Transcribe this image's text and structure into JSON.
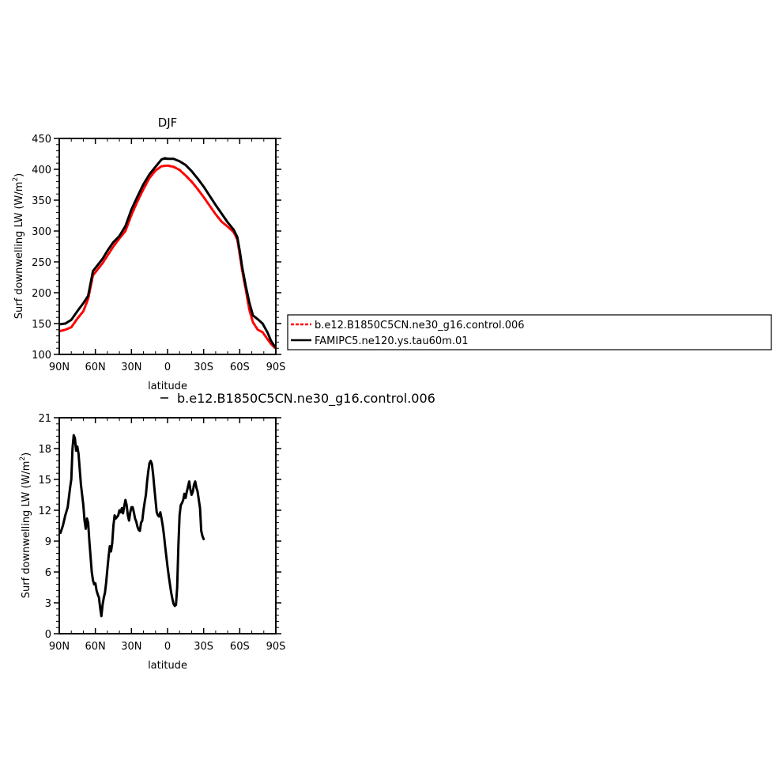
{
  "chart_data": [
    {
      "type": "line",
      "title": "DJF",
      "xlabel": "latitude",
      "ylabel": "Surf downwelling LW (W/m²)",
      "ylabel_parts": {
        "text": "Surf downwelling LW (W/m",
        "sup": "2",
        "close": ")"
      },
      "xlim": [
        90,
        -90
      ],
      "ylim": [
        100,
        450
      ],
      "xticks": [
        90,
        60,
        30,
        0,
        -30,
        -60,
        -90
      ],
      "xtick_labels": [
        "90N",
        "60N",
        "30N",
        "0",
        "30S",
        "60S",
        "90S"
      ],
      "yticks": [
        100,
        150,
        200,
        250,
        300,
        350,
        400,
        450
      ],
      "ytick_labels": [
        "100",
        "150",
        "200",
        "250",
        "300",
        "350",
        "400",
        "450"
      ],
      "legend_placement": "right",
      "series": [
        {
          "name": "b.e12.B1850C5CN.ne30_g16.control.006",
          "color": "#ff0000",
          "style": "dashed",
          "points": [
            [
              89,
              138
            ],
            [
              85,
              140
            ],
            [
              80,
              144
            ],
            [
              75,
              158
            ],
            [
              70,
              170
            ],
            [
              66,
              190
            ],
            [
              62,
              228
            ],
            [
              58,
              238
            ],
            [
              54,
              248
            ],
            [
              50,
              260
            ],
            [
              45,
              275
            ],
            [
              40,
              288
            ],
            [
              35,
              300
            ],
            [
              30,
              326
            ],
            [
              25,
              348
            ],
            [
              20,
              368
            ],
            [
              15,
              386
            ],
            [
              10,
              398
            ],
            [
              5,
              405
            ],
            [
              0,
              406
            ],
            [
              -5,
              404
            ],
            [
              -10,
              399
            ],
            [
              -15,
              390
            ],
            [
              -20,
              380
            ],
            [
              -25,
              368
            ],
            [
              -30,
              355
            ],
            [
              -35,
              341
            ],
            [
              -40,
              327
            ],
            [
              -45,
              315
            ],
            [
              -50,
              307
            ],
            [
              -55,
              298
            ],
            [
              -58,
              286
            ],
            [
              -60,
              262
            ],
            [
              -62,
              236
            ],
            [
              -65,
              205
            ],
            [
              -68,
              172
            ],
            [
              -71,
              152
            ],
            [
              -75,
              140
            ],
            [
              -79,
              136
            ],
            [
              -83,
              125
            ],
            [
              -86,
              117
            ],
            [
              -89,
              111
            ]
          ]
        },
        {
          "name": "FAMIPC5.ne120.ys.tau60m.01",
          "color": "#000000",
          "style": "solid",
          "points": [
            [
              89,
              149
            ],
            [
              85,
              150
            ],
            [
              80,
              156
            ],
            [
              75,
              170
            ],
            [
              70,
              183
            ],
            [
              66,
              195
            ],
            [
              62,
              235
            ],
            [
              58,
              245
            ],
            [
              54,
              255
            ],
            [
              50,
              268
            ],
            [
              45,
              282
            ],
            [
              40,
              292
            ],
            [
              35,
              308
            ],
            [
              30,
              335
            ],
            [
              25,
              356
            ],
            [
              20,
              376
            ],
            [
              15,
              392
            ],
            [
              10,
              404
            ],
            [
              5,
              416
            ],
            [
              2,
              418
            ],
            [
              0,
              417
            ],
            [
              -5,
              417
            ],
            [
              -10,
              413
            ],
            [
              -15,
              407
            ],
            [
              -20,
              397
            ],
            [
              -25,
              385
            ],
            [
              -30,
              372
            ],
            [
              -35,
              357
            ],
            [
              -40,
              342
            ],
            [
              -45,
              328
            ],
            [
              -50,
              314
            ],
            [
              -55,
              302
            ],
            [
              -58,
              290
            ],
            [
              -60,
              268
            ],
            [
              -62,
              242
            ],
            [
              -65,
              211
            ],
            [
              -68,
              184
            ],
            [
              -71,
              163
            ],
            [
              -75,
              157
            ],
            [
              -79,
              150
            ],
            [
              -83,
              136
            ],
            [
              -86,
              122
            ],
            [
              -89,
              113
            ]
          ]
        }
      ]
    },
    {
      "type": "line",
      "title": "",
      "subtitle": "b.e12.B1850C5CN.ne30_g16.control.006",
      "xlabel": "latitude",
      "ylabel": "Surf downwelling LW (W/m²)",
      "ylabel_parts": {
        "text": "Surf downwelling LW (W/m",
        "sup": "2",
        "close": ")"
      },
      "xlim": [
        90,
        -90
      ],
      "ylim": [
        0,
        21
      ],
      "xticks": [
        90,
        60,
        30,
        0,
        -30,
        -60,
        -90
      ],
      "xtick_labels": [
        "90N",
        "60N",
        "30N",
        "0",
        "30S",
        "60S",
        "90S"
      ],
      "yticks": [
        0,
        3,
        6,
        9,
        12,
        15,
        18,
        21
      ],
      "ytick_labels": [
        "0",
        "3",
        "6",
        "9",
        "12",
        "15",
        "18",
        "21"
      ],
      "series": [
        {
          "name": "",
          "color": "#000000",
          "style": "solid",
          "points": [
            [
              89,
              9.8
            ],
            [
              87,
              10.5
            ],
            [
              85,
              11.5
            ],
            [
              83,
              12.3
            ],
            [
              81,
              14.2
            ],
            [
              80,
              15.0
            ],
            [
              79,
              18.0
            ],
            [
              78,
              19.3
            ],
            [
              77,
              19.0
            ],
            [
              76,
              17.8
            ],
            [
              75,
              18.2
            ],
            [
              74,
              17.5
            ],
            [
              73,
              16.0
            ],
            [
              72,
              14.5
            ],
            [
              71,
              13.5
            ],
            [
              70,
              12.5
            ],
            [
              69,
              11.0
            ],
            [
              68,
              10.2
            ],
            [
              67,
              11.2
            ],
            [
              66,
              10.8
            ],
            [
              65,
              9.0
            ],
            [
              64,
              7.5
            ],
            [
              63,
              6.0
            ],
            [
              62,
              5.2
            ],
            [
              61,
              4.8
            ],
            [
              60,
              4.9
            ],
            [
              59,
              4.2
            ],
            [
              58,
              3.8
            ],
            [
              57,
              3.5
            ],
            [
              56,
              2.5
            ],
            [
              55,
              1.7
            ],
            [
              54,
              2.8
            ],
            [
              53,
              3.5
            ],
            [
              52,
              4.0
            ],
            [
              51,
              5.0
            ],
            [
              50,
              6.3
            ],
            [
              49,
              7.5
            ],
            [
              48,
              8.5
            ],
            [
              47,
              8.0
            ],
            [
              46,
              8.8
            ],
            [
              45,
              10.5
            ],
            [
              44,
              11.5
            ],
            [
              43,
              11.2
            ],
            [
              41,
              11.5
            ],
            [
              40,
              12.0
            ],
            [
              39,
              11.8
            ],
            [
              38,
              12.2
            ],
            [
              37,
              11.7
            ],
            [
              36,
              12.4
            ],
            [
              35,
              13.0
            ],
            [
              34,
              12.5
            ],
            [
              33,
              11.5
            ],
            [
              32,
              11.0
            ],
            [
              31,
              11.8
            ],
            [
              30,
              12.3
            ],
            [
              29,
              12.3
            ],
            [
              28,
              11.8
            ],
            [
              27,
              11.2
            ],
            [
              26,
              10.9
            ],
            [
              25,
              10.4
            ],
            [
              24,
              10.1
            ],
            [
              23,
              10.0
            ],
            [
              22,
              10.8
            ],
            [
              21,
              11.0
            ],
            [
              20,
              12.0
            ],
            [
              19,
              12.8
            ],
            [
              18,
              13.5
            ],
            [
              17,
              14.8
            ],
            [
              16,
              15.8
            ],
            [
              15,
              16.6
            ],
            [
              14,
              16.8
            ],
            [
              13,
              16.5
            ],
            [
              12,
              15.5
            ],
            [
              11,
              14.2
            ],
            [
              10,
              13.0
            ],
            [
              9,
              11.8
            ],
            [
              8,
              11.5
            ],
            [
              7,
              11.4
            ],
            [
              6,
              11.8
            ],
            [
              5,
              11.2
            ],
            [
              4,
              10.5
            ],
            [
              3,
              9.6
            ],
            [
              2,
              8.5
            ],
            [
              1,
              7.5
            ],
            [
              0,
              6.5
            ],
            [
              -1,
              5.6
            ],
            [
              -2,
              4.8
            ],
            [
              -3,
              4.0
            ],
            [
              -4,
              3.4
            ],
            [
              -5,
              2.9
            ],
            [
              -6,
              2.7
            ],
            [
              -7,
              2.8
            ],
            [
              -8,
              4.5
            ],
            [
              -9,
              8.5
            ],
            [
              -10,
              11.5
            ],
            [
              -11,
              12.5
            ],
            [
              -12,
              12.7
            ],
            [
              -13,
              13.0
            ],
            [
              -14,
              13.6
            ],
            [
              -15,
              13.2
            ],
            [
              -16,
              13.8
            ],
            [
              -17,
              14.3
            ],
            [
              -18,
              14.8
            ],
            [
              -19,
              14.0
            ],
            [
              -20,
              13.5
            ],
            [
              -21,
              13.8
            ],
            [
              -22,
              14.5
            ],
            [
              -23,
              14.8
            ],
            [
              -24,
              14.2
            ],
            [
              -25,
              13.8
            ],
            [
              -26,
              13.0
            ],
            [
              -27,
              12.2
            ],
            [
              -28,
              10.0
            ],
            [
              -29,
              9.5
            ],
            [
              -30,
              9.2
            ]
          ]
        }
      ]
    }
  ]
}
